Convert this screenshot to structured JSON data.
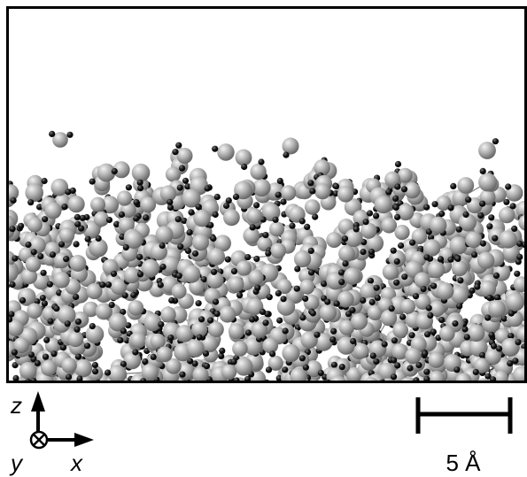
{
  "figure": {
    "axes": {
      "z": "z",
      "x": "x",
      "y": "y"
    },
    "scale_bar": "5 Å"
  }
}
